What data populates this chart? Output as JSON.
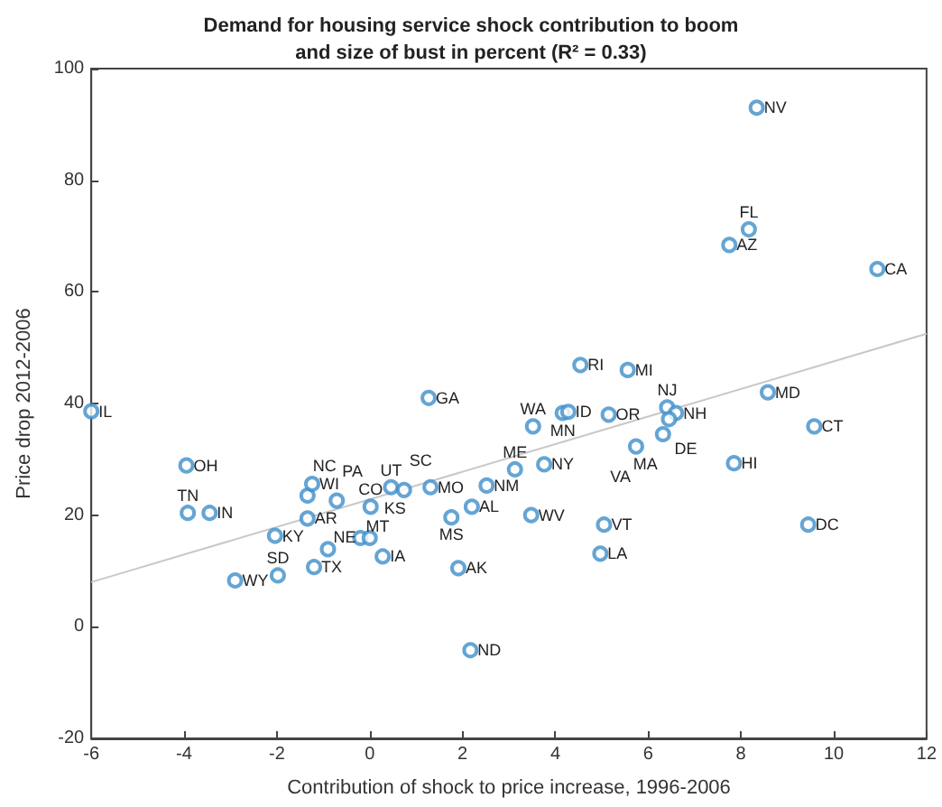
{
  "chart_data": {
    "type": "scatter",
    "title": "Demand for housing service shock contribution to boom\nand size of bust in percent (R² = 0.33)",
    "xlabel": "Contribution of shock to price increase, 1996-2006",
    "ylabel": "Price drop 2012-2006",
    "xlim": [
      -6,
      12
    ],
    "xticks": [
      -6,
      -4,
      -2,
      0,
      2,
      4,
      6,
      8,
      10,
      12
    ],
    "ylim": [
      -20,
      100
    ],
    "yticks": [
      -20,
      0,
      20,
      40,
      60,
      80,
      100
    ],
    "grid": false,
    "marker": "circle",
    "series": [
      {
        "type": "scatter",
        "color": "#3d8fc9",
        "x": [
          -6.0,
          -3.95,
          -3.92,
          -3.45,
          -2.9,
          -1.98,
          -2.04,
          -1.34,
          -1.34,
          -1.24,
          -0.71,
          -1.2,
          -0.9,
          -0.2,
          0.0,
          0.28,
          0.02,
          0.46,
          0.74,
          1.31,
          1.27,
          1.76,
          2.2,
          1.91,
          2.17,
          2.52,
          3.13,
          3.76,
          3.48,
          3.52,
          4.16,
          4.28,
          4.54,
          5.56,
          5.15,
          6.41,
          6.6,
          6.45,
          6.32,
          5.74,
          8.58,
          9.58,
          7.85,
          9.45,
          5.05,
          4.97,
          7.75,
          8.17,
          8.34,
          10.94
        ],
        "values": [
          38.6,
          28.9,
          20.4,
          20.4,
          8.3,
          9.2,
          16.3,
          19.4,
          23.5,
          25.6,
          22.6,
          10.7,
          13.9,
          15.9,
          15.9,
          12.6,
          21.5,
          25.0,
          24.5,
          25.0,
          41.0,
          19.6,
          21.5,
          10.5,
          -4.2,
          25.3,
          28.2,
          29.1,
          20.0,
          35.9,
          38.3,
          38.5,
          46.9,
          46.0,
          38.0,
          39.3,
          38.3,
          37.2,
          34.5,
          32.3,
          42.0,
          35.9,
          29.3,
          18.3,
          18.3,
          13.1,
          68.4,
          71.2,
          93.0,
          64.1
        ]
      },
      {
        "type": "line",
        "color": "#c8c8c8",
        "marker": "none",
        "x": [
          -6,
          12
        ],
        "values": [
          8.0,
          52.5
        ]
      }
    ],
    "annotations": [
      {
        "text": "IL",
        "x": -6.0,
        "y": 38.6
      },
      {
        "text": "OH",
        "x": -3.95,
        "y": 28.9
      },
      {
        "text": "TN",
        "x": -3.92,
        "y": 20.4
      },
      {
        "text": "IN",
        "x": -3.45,
        "y": 20.4
      },
      {
        "text": "WY",
        "x": -2.9,
        "y": 8.3
      },
      {
        "text": "SD",
        "x": -1.98,
        "y": 9.2
      },
      {
        "text": "KY",
        "x": -2.04,
        "y": 16.3
      },
      {
        "text": "AR",
        "x": -1.34,
        "y": 19.4
      },
      {
        "text": "NC",
        "x": -1.34,
        "y": 23.5
      },
      {
        "text": "WI",
        "x": -1.24,
        "y": 25.6
      },
      {
        "text": "PA",
        "x": -0.71,
        "y": 22.6
      },
      {
        "text": "TX",
        "x": -1.2,
        "y": 10.7
      },
      {
        "text": "NE",
        "x": -0.9,
        "y": 13.9
      },
      {
        "text": "MT",
        "x": -0.2,
        "y": 15.9
      },
      {
        "text": "KS",
        "x": 0.0,
        "y": 15.9
      },
      {
        "text": "IA",
        "x": 0.28,
        "y": 12.6
      },
      {
        "text": "CO",
        "x": 0.02,
        "y": 21.5
      },
      {
        "text": "UT",
        "x": 0.46,
        "y": 25.0
      },
      {
        "text": "SC",
        "x": 0.74,
        "y": 24.5
      },
      {
        "text": "MO",
        "x": 1.31,
        "y": 25.0
      },
      {
        "text": "GA",
        "x": 1.27,
        "y": 41.0
      },
      {
        "text": "MS",
        "x": 1.76,
        "y": 19.6
      },
      {
        "text": "AL",
        "x": 2.2,
        "y": 21.5
      },
      {
        "text": "AK",
        "x": 1.91,
        "y": 10.5
      },
      {
        "text": "ND",
        "x": 2.17,
        "y": -4.2
      },
      {
        "text": "NM",
        "x": 2.52,
        "y": 25.3
      },
      {
        "text": "ME",
        "x": 3.13,
        "y": 28.2
      },
      {
        "text": "NY",
        "x": 3.76,
        "y": 29.1
      },
      {
        "text": "WV",
        "x": 3.48,
        "y": 20.0
      },
      {
        "text": "WA",
        "x": 3.52,
        "y": 35.9
      },
      {
        "text": "MN",
        "x": 4.16,
        "y": 38.3
      },
      {
        "text": "ID",
        "x": 4.28,
        "y": 38.5
      },
      {
        "text": "RI",
        "x": 4.54,
        "y": 46.9
      },
      {
        "text": "MI",
        "x": 5.56,
        "y": 46.0
      },
      {
        "text": "OR",
        "x": 5.15,
        "y": 38.0
      },
      {
        "text": "NJ",
        "x": 6.41,
        "y": 39.3
      },
      {
        "text": "NH",
        "x": 6.6,
        "y": 38.3
      },
      {
        "text": "DE",
        "x": 6.45,
        "y": 37.2
      },
      {
        "text": "MA",
        "x": 6.32,
        "y": 34.5
      },
      {
        "text": "VA",
        "x": 5.74,
        "y": 32.3
      },
      {
        "text": "MD",
        "x": 8.58,
        "y": 42.0
      },
      {
        "text": "CT",
        "x": 9.58,
        "y": 35.9
      },
      {
        "text": "HI",
        "x": 7.85,
        "y": 29.3
      },
      {
        "text": "DC",
        "x": 9.45,
        "y": 18.3
      },
      {
        "text": "VT",
        "x": 5.05,
        "y": 18.3
      },
      {
        "text": "LA",
        "x": 4.97,
        "y": 13.1
      },
      {
        "text": "AZ",
        "x": 7.75,
        "y": 68.4
      },
      {
        "text": "FL",
        "x": 8.17,
        "y": 71.2
      },
      {
        "text": "NV",
        "x": 8.34,
        "y": 93.0
      },
      {
        "text": "CA",
        "x": 10.94,
        "y": 64.1
      }
    ]
  }
}
